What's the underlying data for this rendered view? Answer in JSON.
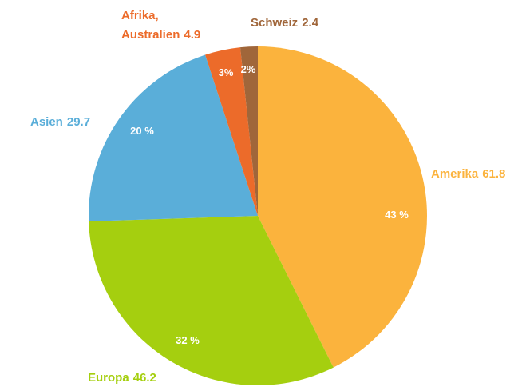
{
  "chart_data": {
    "type": "pie",
    "categories": [
      "Amerika",
      "Europa",
      "Asien",
      "Afrika, Australien",
      "Schweiz"
    ],
    "values": [
      61.8,
      46.2,
      29.7,
      4.9,
      2.4
    ],
    "value_labels": [
      "43 %",
      "32 %",
      "20 %",
      "3%",
      "2%"
    ],
    "colors": [
      "#fbb33d",
      "#a5cf0f",
      "#5aaed9",
      "#ec6b2a",
      "#a0663a"
    ]
  }
}
